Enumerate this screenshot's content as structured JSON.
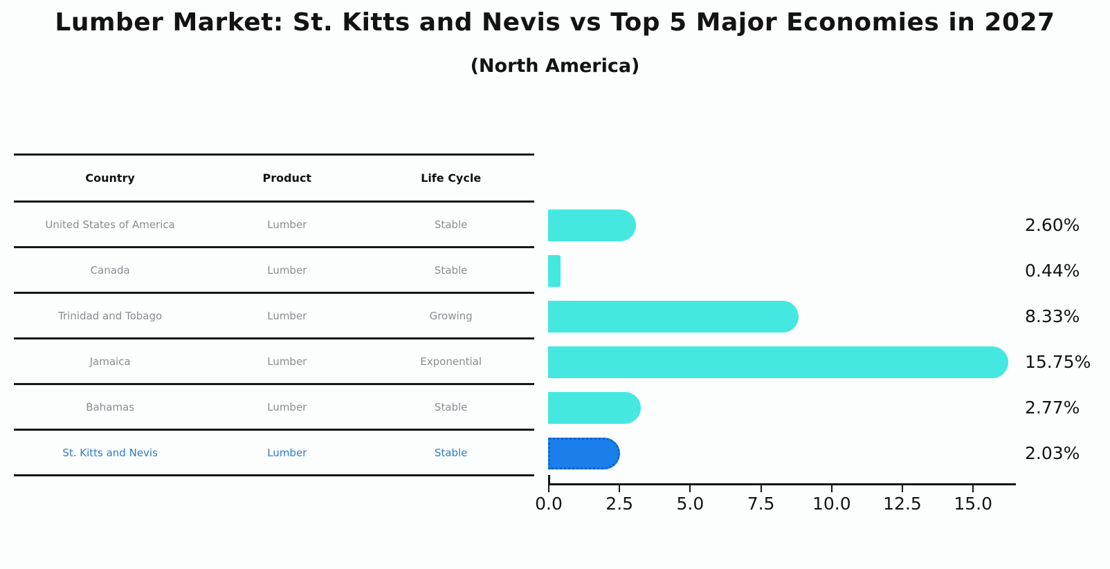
{
  "page": {
    "title": "Lumber Market: St. Kitts and Nevis vs Top 5 Major Economies in 2027",
    "subtitle": "(North America)"
  },
  "table": {
    "headers": [
      "Country",
      "Product",
      "Life Cycle"
    ],
    "rows": [
      {
        "country": "United States of America",
        "product": "Lumber",
        "life_cycle": "Stable",
        "highlighted": false
      },
      {
        "country": "Canada",
        "product": "Lumber",
        "life_cycle": "Stable",
        "highlighted": false
      },
      {
        "country": "Trinidad and Tobago",
        "product": "Lumber",
        "life_cycle": "Growing",
        "highlighted": false
      },
      {
        "country": "Jamaica",
        "product": "Lumber",
        "life_cycle": "Exponential",
        "highlighted": false
      },
      {
        "country": "Bahamas",
        "product": "Lumber",
        "life_cycle": "Stable",
        "highlighted": false
      },
      {
        "country": "St. Kitts and Nevis",
        "product": "Lumber",
        "life_cycle": "Stable",
        "highlighted": true
      }
    ]
  },
  "chart_data": {
    "type": "bar",
    "orientation": "horizontal",
    "title": "Lumber Market: St. Kitts and Nevis vs Top 5 Major Economies in 2027",
    "subtitle": "(North America)",
    "categories": [
      "United States of America",
      "Canada",
      "Trinidad and Tobago",
      "Jamaica",
      "Bahamas",
      "St. Kitts and Nevis"
    ],
    "values": [
      2.6,
      0.44,
      8.33,
      15.75,
      2.77,
      2.03
    ],
    "value_labels": [
      "2.60%",
      "0.44%",
      "8.33%",
      "15.75%",
      "2.77%",
      "2.03%"
    ],
    "xtick_labels": [
      "0.0",
      "2.5",
      "5.0",
      "7.5",
      "10.0",
      "12.5",
      "15.0"
    ],
    "xticks": [
      0.0,
      2.5,
      5.0,
      7.5,
      10.0,
      12.5,
      15.0
    ],
    "xlim": [
      0,
      16.5
    ],
    "grid": false,
    "legend": "none",
    "bar_color": "#45e8e0",
    "highlight_color": "#1a7fe8",
    "highlight_border_color": "#0f62c9",
    "highlight_index": 5
  },
  "colors": {
    "background": "#fcfdfd",
    "text_primary": "#131313",
    "text_muted": "#898d90",
    "text_highlight": "#2d7dc8",
    "table_line": "#161616"
  }
}
